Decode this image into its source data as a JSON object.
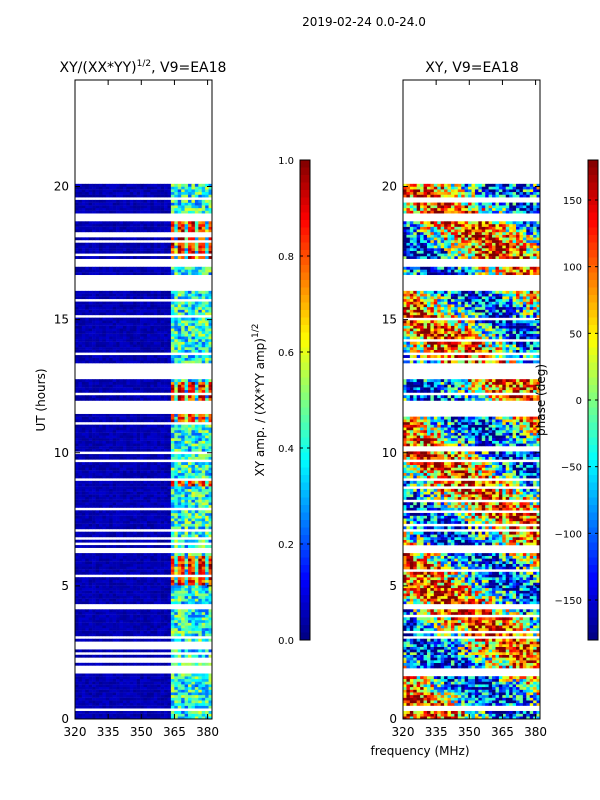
{
  "chart_data": {
    "suptitle": "2019-02-24 0.0-24.0",
    "xlabel": "frequency (MHz)",
    "panels": [
      {
        "id": "amp",
        "type": "heatmap",
        "title": "XY/(XX*YY)",
        "title_sup": "1/2",
        "title_suffix": ", V9=EA18",
        "ylabel": "UT (hours)",
        "xlim": [
          320,
          382
        ],
        "ylim": [
          0,
          24
        ],
        "xticks": [
          320,
          335,
          350,
          365,
          380
        ],
        "yticks": [
          0,
          5,
          10,
          15,
          20
        ],
        "colorbar": {
          "label": "XY amp. / (XX*YY amp)",
          "label_sup": "1/2",
          "range": [
            0.0,
            1.0
          ],
          "ticks": [
            "0.0",
            "0.2",
            "0.4",
            "0.6",
            "0.8",
            "1.0"
          ],
          "tick_values": [
            0.0,
            0.2,
            0.4,
            0.6,
            0.8,
            1.0
          ]
        },
        "data_note": "Mostly near 0 below 362 MHz; strong bands 0.7-1.0 near 363-378 MHz at UT 5-6, 8.8, 11-12.5, 17-18.5"
      },
      {
        "id": "phase",
        "type": "heatmap",
        "title": "XY, V9=EA18",
        "ylabel": "phase (deg)",
        "xlim": [
          320,
          382
        ],
        "ylim": [
          0,
          24
        ],
        "xticks": [
          320,
          335,
          350,
          365,
          380
        ],
        "yticks": [
          0,
          5,
          10,
          15,
          20
        ],
        "colorbar": {
          "label": "phase (deg)",
          "range": [
            -180,
            180
          ],
          "ticks": [
            "−150",
            "−100",
            "−50",
            "0",
            "50",
            "100",
            "150"
          ],
          "tick_values": [
            -150,
            -100,
            -50,
            0,
            50,
            100,
            150
          ]
        },
        "data_note": "Phase values spread over -180 to 180 deg; data present between UT 0 and 20.1"
      }
    ],
    "data_time_range_hours": [
      0,
      20.1
    ],
    "flagged_ut_intervals": [
      [
        1.7,
        1.9
      ],
      [
        3.0,
        3.1
      ],
      [
        4.1,
        4.3
      ],
      [
        6.2,
        6.4
      ],
      [
        7.0,
        7.1
      ],
      [
        8.95,
        9.05
      ],
      [
        9.6,
        9.7
      ],
      [
        11.5,
        11.95
      ],
      [
        12.2,
        12.3
      ],
      [
        12.75,
        13.4
      ],
      [
        13.7,
        13.8
      ],
      [
        16.05,
        16.65
      ],
      [
        17.0,
        17.25
      ],
      [
        18.7,
        18.95
      ],
      [
        19.5,
        19.6
      ]
    ],
    "colors": {
      "cb_low": "#00007f",
      "cb_high": "#7f0000",
      "background": "#ffffff"
    }
  }
}
